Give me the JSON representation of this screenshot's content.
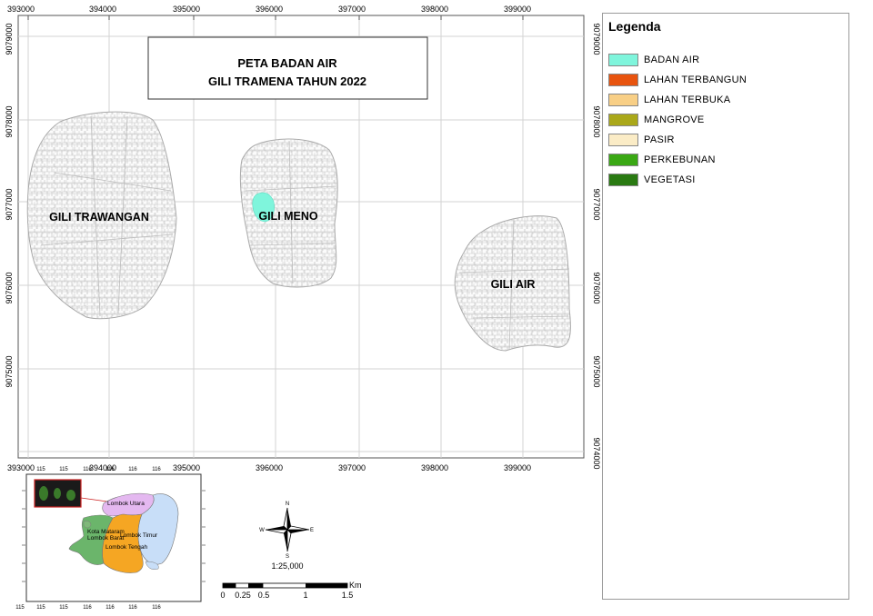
{
  "map": {
    "title_line1": "PETA BADAN AIR",
    "title_line2": "GILI TRAMENA TAHUN 2022",
    "x_ticks": [
      "393000",
      "394000",
      "395000",
      "396000",
      "397000",
      "398000",
      "399000"
    ],
    "y_ticks_left": [
      "9079000",
      "9078000",
      "9077000",
      "9076000",
      "9075000"
    ],
    "y_ticks_right": [
      "9079000",
      "9078000",
      "9077000",
      "9076000",
      "9075000",
      "9074000"
    ],
    "islands": [
      {
        "name": "GILI TRAWANGAN"
      },
      {
        "name": "GILI MENO"
      },
      {
        "name": "GILI AIR"
      }
    ],
    "water_body_color": "#7ff5dc"
  },
  "legend": {
    "title": "Legenda",
    "items": [
      {
        "label": "BADAN AIR",
        "color": "#7ff5dc"
      },
      {
        "label": "LAHAN TERBANGUN",
        "color": "#e8540f"
      },
      {
        "label": "LAHAN TERBUKA",
        "color": "#f8cf86"
      },
      {
        "label": "MANGROVE",
        "color": "#aaa81a"
      },
      {
        "label": "PASIR",
        "color": "#fbecc6"
      },
      {
        "label": "PERKEBUNAN",
        "color": "#3aa814"
      },
      {
        "label": "VEGETASI",
        "color": "#2a7a12"
      }
    ]
  },
  "inset": {
    "top_ticks": [
      "115",
      "115",
      "116",
      "116",
      "116",
      "116"
    ],
    "bottom_ticks": [
      "115",
      "115",
      "115",
      "116",
      "116",
      "116",
      "116"
    ],
    "regions": [
      {
        "name": "Lombok Utara",
        "color": "#e4b8f0"
      },
      {
        "name": "Kota Mataram",
        "color": "#7fb87a"
      },
      {
        "name": "Lombok Barat",
        "color": "#6bb56b"
      },
      {
        "name": "Lombok Timur",
        "color": "#c8def8"
      },
      {
        "name": "Lombok Tengah",
        "color": "#f5a623"
      }
    ]
  },
  "north_arrow": {
    "n": "N",
    "s": "S",
    "e": "E",
    "w": "W"
  },
  "scale": {
    "ratio": "1:25,000",
    "unit": "Km",
    "labels": [
      "0",
      "0.25",
      "0.5",
      "1",
      "1.5"
    ]
  }
}
